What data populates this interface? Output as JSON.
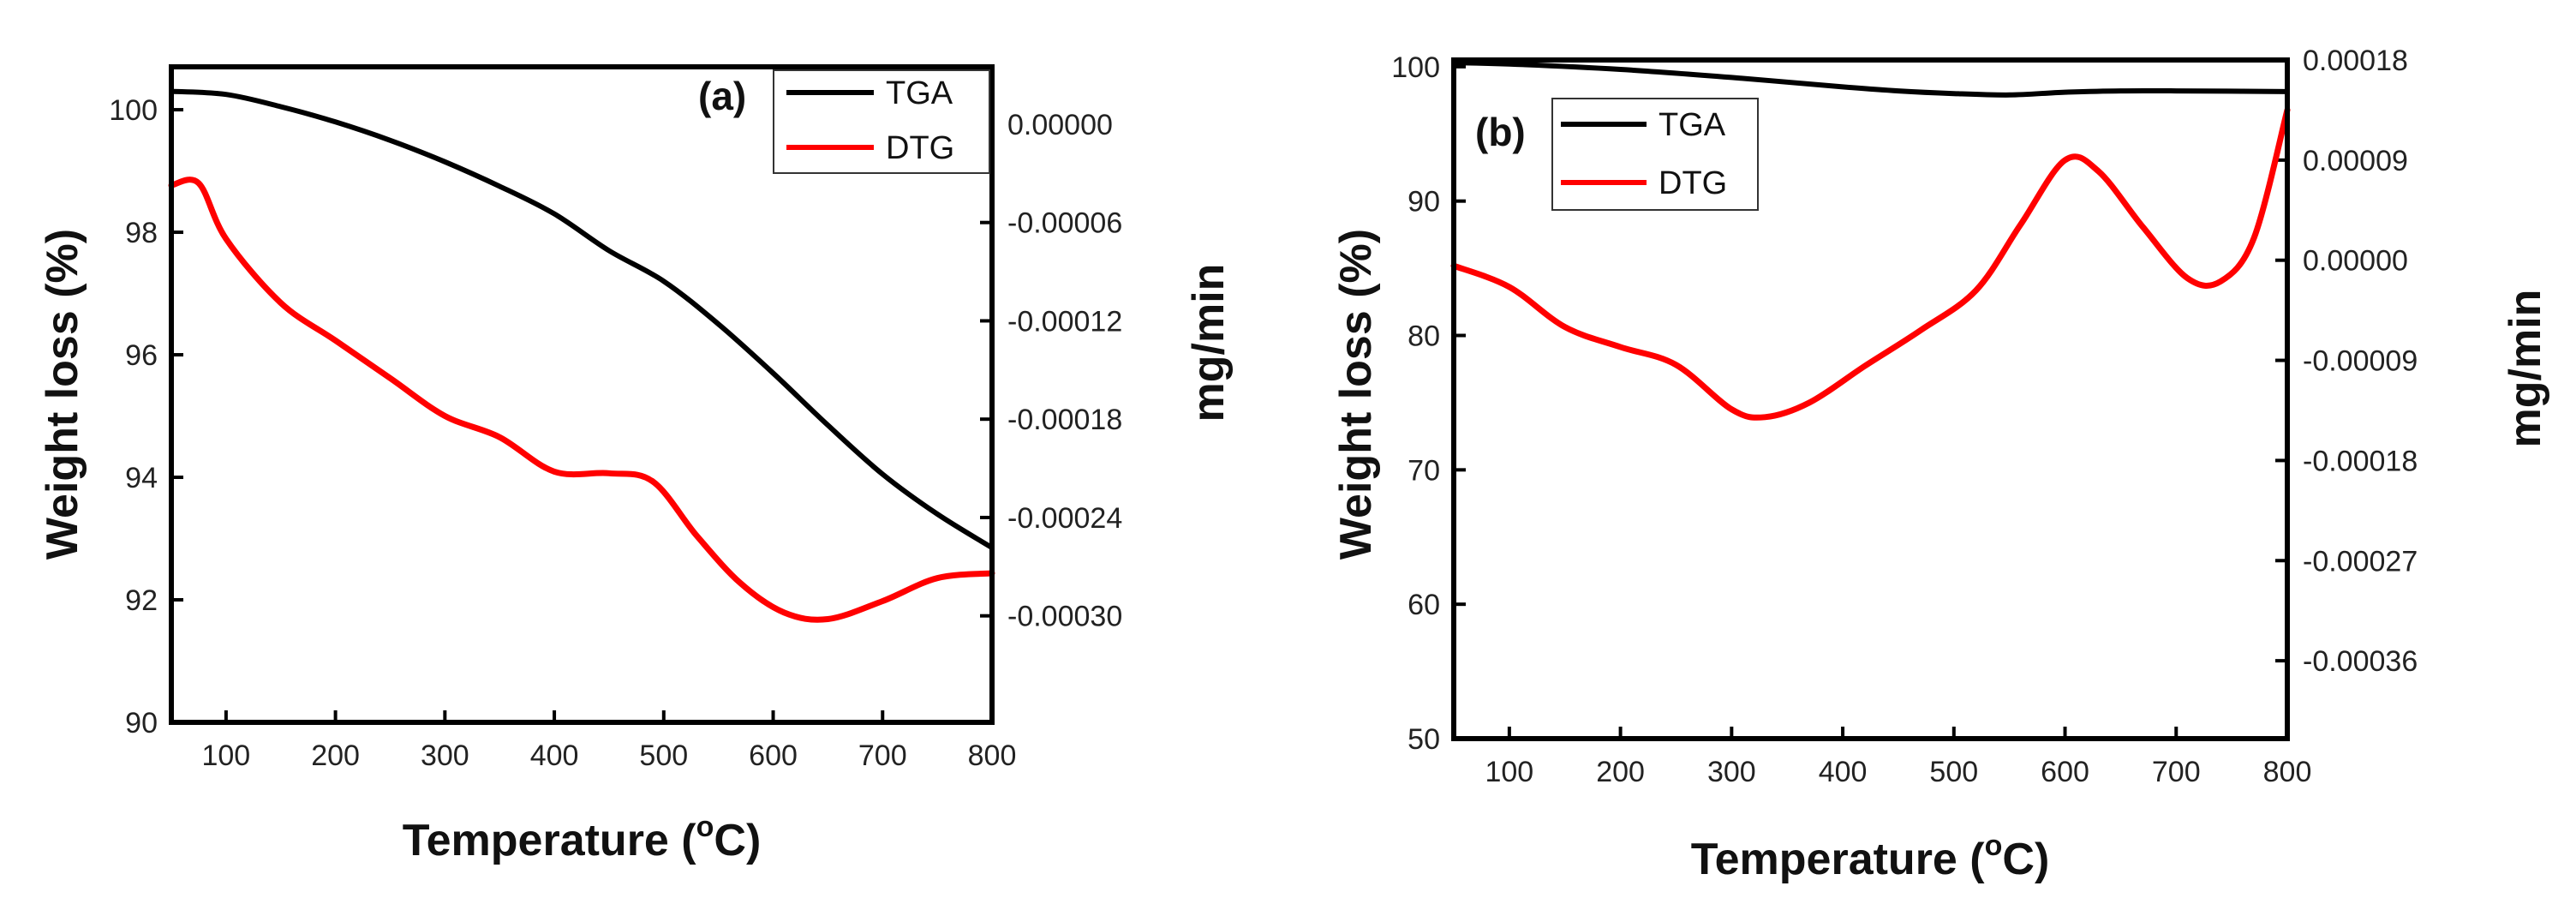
{
  "chart_data": [
    {
      "type": "line",
      "panel_label": "(a)",
      "xlabel": "Temperature (",
      "xlabel_sup": "o",
      "xlabel_end": "C)",
      "ylabel_left": "Weight loss (%)",
      "ylabel_right": "mg/min",
      "xlim": [
        50,
        800
      ],
      "ylim_left": [
        90,
        100.7
      ],
      "ylim_right": [
        -0.000365,
        3.5e-05
      ],
      "x_ticks": [
        100,
        200,
        300,
        400,
        500,
        600,
        700,
        800
      ],
      "y_left_ticks": [
        90,
        92,
        94,
        96,
        98,
        100
      ],
      "y_right_ticks": [
        {
          "value": 0.0,
          "label": "0.00000"
        },
        {
          "value": -6e-05,
          "label": "-0.00006"
        },
        {
          "value": -0.00012,
          "label": "-0.00012"
        },
        {
          "value": -0.00018,
          "label": "-0.00018"
        },
        {
          "value": -0.00024,
          "label": "-0.00024"
        },
        {
          "value": -0.0003,
          "label": "-0.00030"
        }
      ],
      "legend": [
        {
          "name": "TGA",
          "color": "#000000"
        },
        {
          "name": "DTG",
          "color": "#ff0000"
        }
      ],
      "series": [
        {
          "name": "TGA",
          "axis": "left",
          "color": "#000000",
          "x": [
            50,
            100,
            150,
            200,
            250,
            300,
            350,
            400,
            450,
            500,
            550,
            600,
            650,
            700,
            750,
            800
          ],
          "y": [
            100.3,
            100.25,
            100.05,
            99.8,
            99.5,
            99.15,
            98.75,
            98.3,
            97.7,
            97.2,
            96.5,
            95.7,
            94.85,
            94.05,
            93.4,
            92.85
          ]
        },
        {
          "name": "DTG",
          "axis": "right",
          "color": "#ff0000",
          "x": [
            50,
            75,
            100,
            150,
            200,
            250,
            300,
            350,
            400,
            450,
            490,
            530,
            570,
            610,
            650,
            700,
            750,
            800
          ],
          "y": [
            -3.73e-05,
            -3.6e-05,
            -7e-05,
            -0.000109,
            -0.000132,
            -0.000155,
            -0.000178,
            -0.000191,
            -0.000212,
            -0.000213,
            -0.000218,
            -0.000251,
            -0.00028,
            -0.000298,
            -0.000302,
            -0.000291,
            -0.000277,
            -0.000274
          ]
        }
      ]
    },
    {
      "type": "line",
      "panel_label": "(b)",
      "xlabel": "Temperature (",
      "xlabel_sup": "o",
      "xlabel_end": "C)",
      "ylabel_left": "Weight loss (%)",
      "ylabel_right": "mg/min",
      "xlim": [
        50,
        800
      ],
      "ylim_left": [
        50,
        100.5
      ],
      "ylim_right": [
        -0.00043,
        0.00018
      ],
      "x_ticks": [
        100,
        200,
        300,
        400,
        500,
        600,
        700,
        800
      ],
      "y_left_ticks": [
        50,
        60,
        70,
        80,
        90,
        100
      ],
      "y_right_ticks": [
        {
          "value": 0.00018,
          "label": "0.00018"
        },
        {
          "value": 9e-05,
          "label": "0.00009"
        },
        {
          "value": 0.0,
          "label": "0.00000"
        },
        {
          "value": -9e-05,
          "label": "-0.00009"
        },
        {
          "value": -0.00018,
          "label": "-0.00018"
        },
        {
          "value": -0.00027,
          "label": "-0.00027"
        },
        {
          "value": -0.00036,
          "label": "-0.00036"
        }
      ],
      "legend": [
        {
          "name": "TGA",
          "color": "#000000"
        },
        {
          "name": "DTG",
          "color": "#ff0000"
        }
      ],
      "series": [
        {
          "name": "TGA",
          "axis": "left",
          "color": "#000000",
          "x": [
            50,
            100,
            200,
            300,
            400,
            450,
            500,
            550,
            600,
            650,
            700,
            800
          ],
          "y": [
            100.3,
            100.2,
            99.8,
            99.2,
            98.5,
            98.2,
            98.0,
            97.9,
            98.1,
            98.2,
            98.2,
            98.15
          ]
        },
        {
          "name": "DTG",
          "axis": "right",
          "color": "#ff0000",
          "x": [
            50,
            100,
            150,
            200,
            250,
            300,
            330,
            370,
            420,
            470,
            520,
            560,
            600,
            630,
            670,
            710,
            740,
            770,
            800
          ],
          "y": [
            -5e-06,
            -2.4e-05,
            -6e-05,
            -7.8e-05,
            -9.4e-05,
            -0.000134,
            -0.000141,
            -0.000128,
            -9.5e-05,
            -6.3e-05,
            -2.7e-05,
            3.2e-05,
            9e-05,
            8e-05,
            3e-05,
            -1.6e-05,
            -1.9e-05,
            2e-05,
            0.000135
          ]
        }
      ]
    }
  ]
}
